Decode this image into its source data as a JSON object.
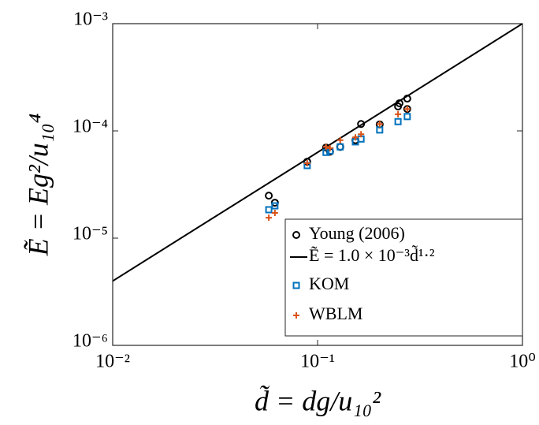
{
  "chart_data": {
    "type": "scatter",
    "xlabel": "d̃ = dg/u₁₀²",
    "ylabel": "Ẽ = Eg²/u₁₀⁴",
    "xscale": "log",
    "yscale": "log",
    "xlim": [
      0.01,
      1
    ],
    "ylim": [
      1e-06,
      0.001
    ],
    "xticks": [
      {
        "value": 0.01,
        "label": "10⁻²"
      },
      {
        "value": 0.1,
        "label": "10⁻¹"
      },
      {
        "value": 1,
        "label": "10⁰"
      }
    ],
    "yticks": [
      {
        "value": 1e-06,
        "label": "10⁻⁶"
      },
      {
        "value": 1e-05,
        "label": "10⁻⁵"
      },
      {
        "value": 0.0001,
        "label": "10⁻⁴"
      },
      {
        "value": 0.001,
        "label": "10⁻³"
      }
    ],
    "grid": false,
    "legend": "lower right",
    "series": [
      {
        "name": "Young (2006)",
        "type": "scatter",
        "marker": "circle",
        "color": "#000000",
        "x": [
          0.0578,
          0.0619,
          0.089,
          0.11,
          0.115,
          0.129,
          0.153,
          0.163,
          0.201,
          0.247,
          0.251,
          0.274,
          0.274
        ],
        "values": [
          2.49e-05,
          2.14e-05,
          5.16e-05,
          7e-05,
          6.4e-05,
          7.1e-05,
          8.2e-05,
          0.000116,
          0.000115,
          0.000169,
          0.000181,
          0.0002,
          0.00016
        ]
      },
      {
        "name": "Ẽ = 1.0 × 10⁻³d̃¹·²",
        "type": "line",
        "color": "#000000",
        "x": [
          0.01,
          1
        ],
        "values": [
          3.98e-06,
          0.001
        ]
      },
      {
        "name": "KOM",
        "type": "scatter",
        "marker": "square",
        "color": "#0072BD",
        "x": [
          0.0578,
          0.0619,
          0.089,
          0.11,
          0.115,
          0.129,
          0.153,
          0.163,
          0.201,
          0.247,
          0.274
        ],
        "values": [
          1.84e-05,
          2e-05,
          4.75e-05,
          6.3e-05,
          6.5e-05,
          7.1e-05,
          7.9e-05,
          8.4e-05,
          0.000102,
          0.000122,
          0.000136
        ]
      },
      {
        "name": "WBLM",
        "type": "scatter",
        "marker": "plus",
        "color": "#D95319",
        "x": [
          0.0578,
          0.0619,
          0.089,
          0.11,
          0.115,
          0.129,
          0.153,
          0.163,
          0.201,
          0.247,
          0.274
        ],
        "values": [
          1.55e-05,
          1.72e-05,
          5e-05,
          7.1e-05,
          6.9e-05,
          8.2e-05,
          8.7e-05,
          9.3e-05,
          0.000116,
          0.000143,
          0.00016
        ]
      }
    ]
  }
}
